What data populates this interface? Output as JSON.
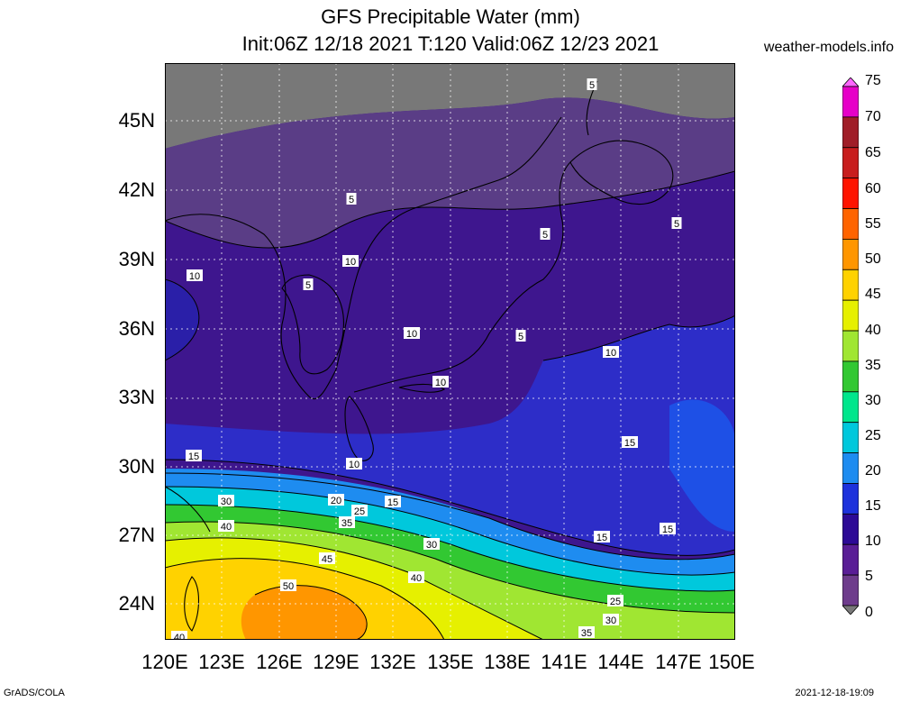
{
  "header": {
    "title_line1": "GFS Precipitable Water (mm)",
    "title_line2": "Init:06Z 12/18 2021 T:120 Valid:06Z 12/23 2021",
    "site": "weather-models.info"
  },
  "footer": {
    "left": "GrADS/COLA",
    "right": "2021-12-18-19:09"
  },
  "map": {
    "lon_range": [
      120,
      150
    ],
    "lat_range": [
      22,
      47.5
    ],
    "lat_ticks": [
      "45N",
      "42N",
      "39N",
      "36N",
      "33N",
      "30N",
      "27N",
      "24N"
    ],
    "lon_ticks": [
      "120E",
      "123E",
      "126E",
      "129E",
      "132E",
      "135E",
      "138E",
      "141E",
      "144E",
      "147E",
      "150E"
    ],
    "gridlines": true,
    "contour_labels": [
      "5",
      "5",
      "5",
      "5",
      "5",
      "5",
      "10",
      "10",
      "10",
      "10",
      "10",
      "10",
      "15",
      "15",
      "15",
      "15",
      "15",
      "20",
      "25",
      "25",
      "30",
      "30",
      "30",
      "35",
      "35",
      "40",
      "40",
      "40",
      "45",
      "50"
    ]
  },
  "colorbar": {
    "labels": [
      "75",
      "70",
      "65",
      "60",
      "55",
      "50",
      "45",
      "40",
      "35",
      "30",
      "25",
      "20",
      "15",
      "10",
      "5",
      "0"
    ],
    "colors": [
      "#ff66ff",
      "#e600c8",
      "#a01e28",
      "#c81e1e",
      "#ff1400",
      "#ff6400",
      "#ff9600",
      "#ffd200",
      "#e6f000",
      "#a0e632",
      "#32c832",
      "#00e68c",
      "#00c8dc",
      "#1e8cf0",
      "#1e32dc",
      "#2d0a96",
      "#5a1e96",
      "#6e3c8c",
      "#7a7a7a"
    ]
  }
}
